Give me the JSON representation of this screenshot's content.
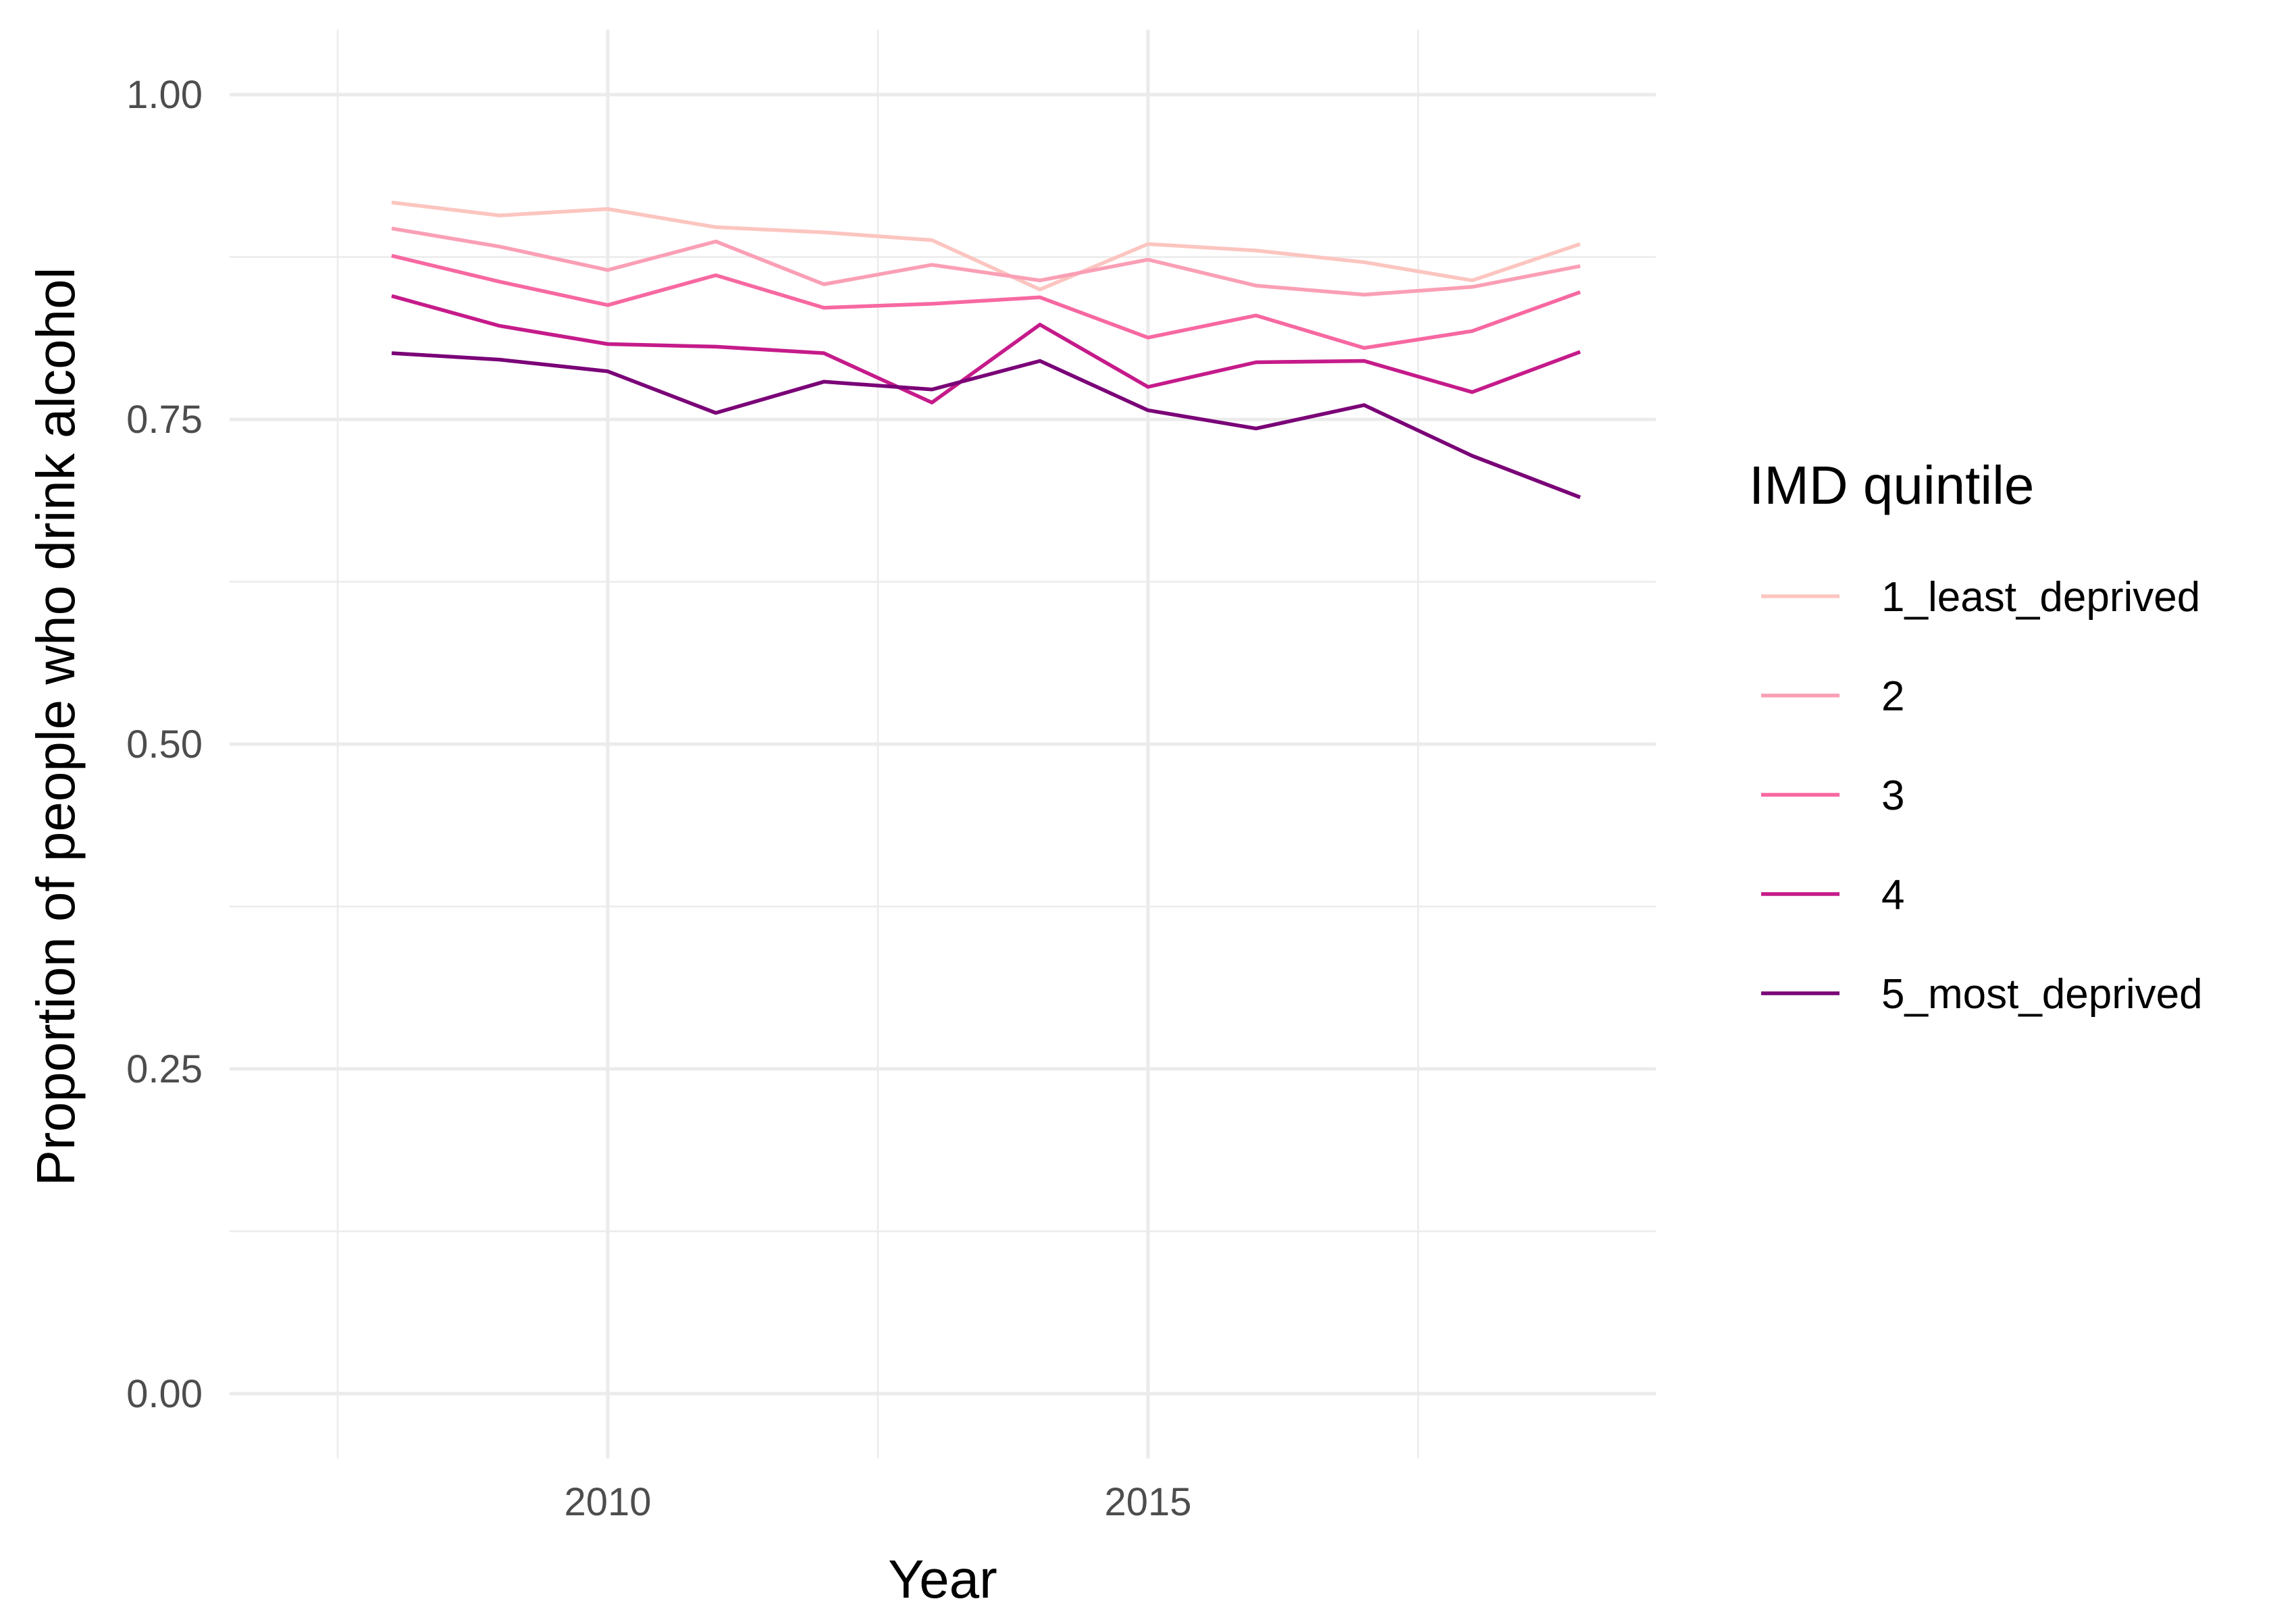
{
  "chart_data": {
    "type": "line",
    "title": "",
    "xlabel": "Year",
    "ylabel": "Proportion of people who drink alcohol",
    "xlim": [
      2006.5,
      2019.7
    ],
    "ylim": [
      -0.05,
      1.05
    ],
    "x_ticks": [
      2010,
      2015
    ],
    "x_tick_labels": [
      "2010",
      "2015"
    ],
    "x_minor_ticks": [
      2007.5,
      2012.5,
      2017.5
    ],
    "y_ticks": [
      0,
      0.25,
      0.5,
      0.75,
      1
    ],
    "y_tick_labels": [
      "0.00",
      "0.25",
      "0.50",
      "0.75",
      "1.00"
    ],
    "y_minor_ticks": [
      0.125,
      0.375,
      0.625,
      0.875
    ],
    "grid": true,
    "legend": {
      "title": "IMD quintile",
      "position": "right"
    },
    "x": [
      2008,
      2009,
      2010,
      2011,
      2012,
      2013,
      2014,
      2015,
      2016,
      2017,
      2018,
      2019
    ],
    "series": [
      {
        "name": "1_least_deprived",
        "color": "#fcc5c0",
        "values": [
          0.917,
          0.907,
          0.912,
          0.898,
          0.894,
          0.888,
          0.85,
          0.885,
          0.88,
          0.871,
          0.857,
          0.885
        ]
      },
      {
        "name": "2",
        "color": "#fa9fb5",
        "values": [
          0.897,
          0.883,
          0.865,
          0.887,
          0.854,
          0.869,
          0.857,
          0.873,
          0.853,
          0.846,
          0.852,
          0.868
        ]
      },
      {
        "name": "3",
        "color": "#f768a1",
        "values": [
          0.876,
          0.856,
          0.838,
          0.861,
          0.836,
          0.839,
          0.844,
          0.813,
          0.83,
          0.805,
          0.818,
          0.848
        ]
      },
      {
        "name": "4",
        "color": "#c51b8a",
        "values": [
          0.845,
          0.822,
          0.808,
          0.806,
          0.801,
          0.763,
          0.823,
          0.775,
          0.794,
          0.795,
          0.771,
          0.802
        ]
      },
      {
        "name": "5_most_deprived",
        "color": "#7a0177",
        "values": [
          0.801,
          0.796,
          0.787,
          0.755,
          0.779,
          0.773,
          0.795,
          0.757,
          0.743,
          0.761,
          0.722,
          0.69
        ]
      }
    ]
  }
}
